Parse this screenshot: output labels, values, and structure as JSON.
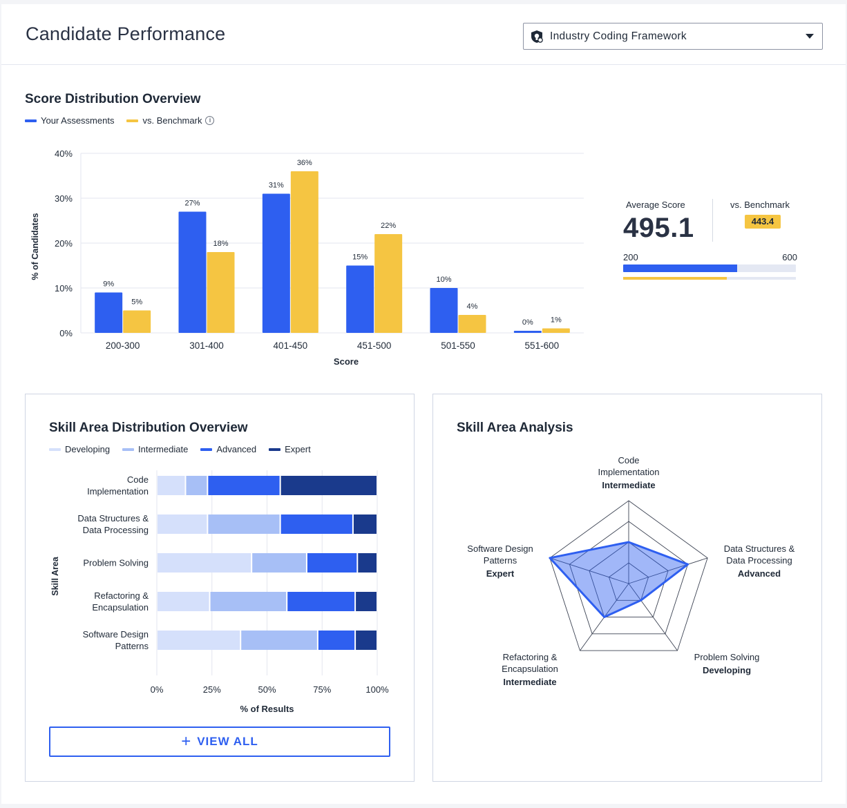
{
  "header": {
    "title": "Candidate Performance",
    "framework_select": {
      "value": "Industry Coding Framework",
      "icon": "shield-icon"
    }
  },
  "score_distribution": {
    "title": "Score Distribution Overview",
    "legend": [
      {
        "label": "Your Assessments",
        "color": "#2e5ff0"
      },
      {
        "label": "vs. Benchmark",
        "color": "#f5c542"
      }
    ]
  },
  "chart_data": [
    {
      "type": "bar",
      "categories": [
        "200-300",
        "301-400",
        "401-450",
        "451-500",
        "501-550",
        "551-600"
      ],
      "series": [
        {
          "name": "Your Assessments",
          "values": [
            9,
            27,
            31,
            15,
            10,
            0
          ],
          "labels": [
            "9%",
            "27%",
            "31%",
            "15%",
            "10%",
            "0%"
          ],
          "color": "#2e5ff0"
        },
        {
          "name": "vs. Benchmark",
          "values": [
            5,
            18,
            36,
            22,
            4,
            1
          ],
          "labels": [
            "5%",
            "18%",
            "36%",
            "22%",
            "4%",
            "1%"
          ],
          "color": "#f5c542"
        }
      ],
      "xlabel": "Score",
      "ylabel": "% of Candidates",
      "ylim": [
        0,
        40
      ],
      "yticks": [
        "0%",
        "10%",
        "20%",
        "30%",
        "40%"
      ],
      "grid": true
    },
    {
      "type": "bar",
      "orientation": "horizontal-stacked",
      "categories": [
        [
          "Code",
          "Implementation"
        ],
        [
          "Data Structures &",
          "Data Processing"
        ],
        [
          "Problem Solving"
        ],
        [
          "Refactoring &",
          "Encapsulation"
        ],
        [
          "Software Design",
          "Patterns"
        ]
      ],
      "series": [
        {
          "name": "Developing",
          "values": [
            13,
            23,
            43,
            24,
            38
          ],
          "color": "#d5e0fb"
        },
        {
          "name": "Intermediate",
          "values": [
            10,
            33,
            25,
            35,
            35
          ],
          "color": "#a7bff6"
        },
        {
          "name": "Advanced",
          "values": [
            33,
            33,
            23,
            31,
            17
          ],
          "color": "#2e5ff0"
        },
        {
          "name": "Expert",
          "values": [
            44,
            11,
            9,
            10,
            10
          ],
          "color": "#1a3a8c"
        }
      ],
      "xlabel": "% of Results",
      "ylabel": "Skill Area",
      "xlim": [
        0,
        100
      ],
      "xticks": [
        "0%",
        "25%",
        "50%",
        "75%",
        "100%"
      ]
    },
    {
      "type": "radar",
      "axes": [
        {
          "label": [
            "Code",
            "Implementation"
          ],
          "level": "Intermediate",
          "value": 0.5
        },
        {
          "label": [
            "Data Structures &",
            "Data Processing"
          ],
          "level": "Advanced",
          "value": 0.75
        },
        {
          "label": [
            "Problem Solving"
          ],
          "level": "Developing",
          "value": 0.25
        },
        {
          "label": [
            "Refactoring &",
            "Encapsulation"
          ],
          "level": "Intermediate",
          "value": 0.5
        },
        {
          "label": [
            "Software Design",
            "Patterns"
          ],
          "level": "Expert",
          "value": 1.0
        }
      ],
      "rings": 4,
      "color": "#2e5ff0"
    }
  ],
  "average": {
    "label": "Average Score",
    "value": "495.1",
    "benchmark_label": "vs. Benchmark",
    "benchmark_value": "443.4",
    "range_min": "200",
    "range_max": "600",
    "score_fraction": 0.66,
    "benchmark_fraction": 0.6
  },
  "skill_distribution": {
    "title": "Skill Area Distribution Overview",
    "legend": [
      {
        "label": "Developing",
        "color": "#d5e0fb"
      },
      {
        "label": "Intermediate",
        "color": "#a7bff6"
      },
      {
        "label": "Advanced",
        "color": "#2e5ff0"
      },
      {
        "label": "Expert",
        "color": "#1a3a8c"
      }
    ],
    "view_all_label": "VIEW ALL"
  },
  "skill_analysis": {
    "title": "Skill Area Analysis"
  }
}
